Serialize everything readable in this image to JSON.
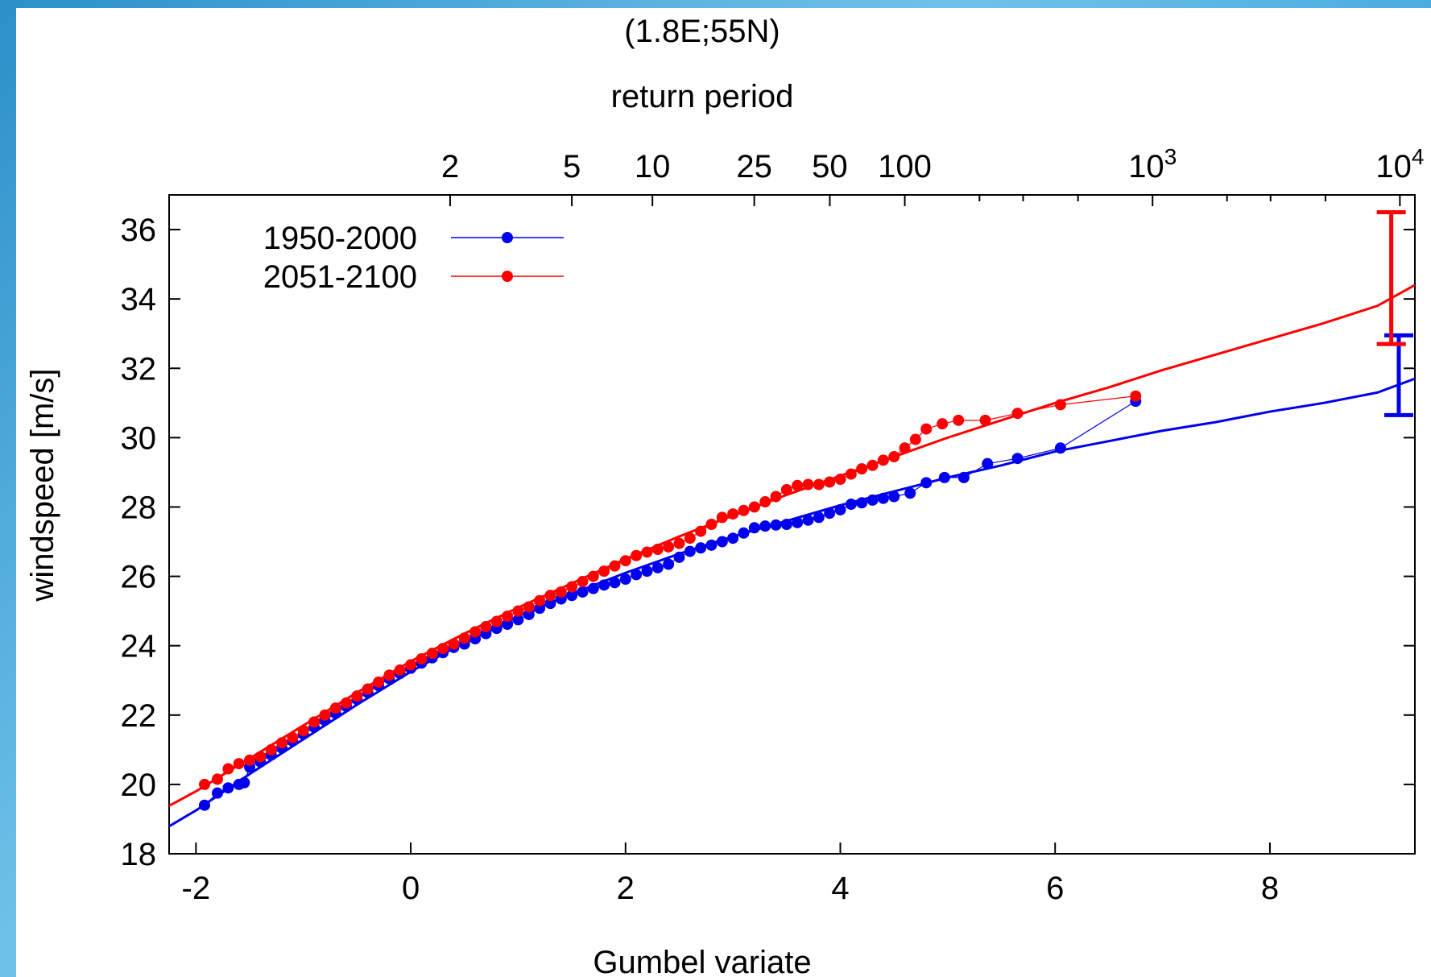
{
  "chart_data": {
    "type": "scatter",
    "title": "(1.8E;55N)",
    "xlabel": "Gumbel variate",
    "ylabel": "windspeed [m/s]",
    "x2label": "return period",
    "xlim": [
      -2.25,
      9.35
    ],
    "ylim": [
      18,
      37
    ],
    "x_ticks": [
      -2,
      0,
      2,
      4,
      6,
      8
    ],
    "y_ticks": [
      18,
      20,
      22,
      24,
      26,
      28,
      30,
      32,
      34,
      36
    ],
    "x2_ticks": [
      {
        "value": 2,
        "label": "2"
      },
      {
        "value": 5,
        "label": "5"
      },
      {
        "value": 10,
        "label": "10"
      },
      {
        "value": 25,
        "label": "25"
      },
      {
        "value": 50,
        "label": "50"
      },
      {
        "value": 100,
        "label": "100"
      },
      {
        "value": 1000,
        "label": "10",
        "exp": "3"
      },
      {
        "value": 10000,
        "label": "10",
        "exp": "4"
      }
    ],
    "x2_minor_ticks": [
      200,
      300,
      500,
      2000,
      3000,
      5000
    ],
    "legend_position": "top-left",
    "grid": false,
    "series": [
      {
        "name": "1950-2000",
        "color": "#0000ee",
        "points": [
          [
            -1.92,
            19.4
          ],
          [
            -1.8,
            19.75
          ],
          [
            -1.7,
            19.9
          ],
          [
            -1.6,
            20.0
          ],
          [
            -1.55,
            20.05
          ],
          [
            -1.5,
            20.5
          ],
          [
            -1.4,
            20.65
          ],
          [
            -1.3,
            20.85
          ],
          [
            -1.2,
            21.05
          ],
          [
            -1.1,
            21.25
          ],
          [
            -1.0,
            21.45
          ],
          [
            -0.9,
            21.65
          ],
          [
            -0.8,
            21.85
          ],
          [
            -0.7,
            22.05
          ],
          [
            -0.6,
            22.25
          ],
          [
            -0.5,
            22.45
          ],
          [
            -0.4,
            22.65
          ],
          [
            -0.3,
            22.85
          ],
          [
            -0.2,
            23.05
          ],
          [
            -0.1,
            23.2
          ],
          [
            0.0,
            23.35
          ],
          [
            0.1,
            23.5
          ],
          [
            0.2,
            23.65
          ],
          [
            0.3,
            23.8
          ],
          [
            0.4,
            23.95
          ],
          [
            0.5,
            24.05
          ],
          [
            0.6,
            24.2
          ],
          [
            0.7,
            24.35
          ],
          [
            0.8,
            24.5
          ],
          [
            0.9,
            24.62
          ],
          [
            1.0,
            24.75
          ],
          [
            1.1,
            24.9
          ],
          [
            1.2,
            25.08
          ],
          [
            1.3,
            25.22
          ],
          [
            1.4,
            25.35
          ],
          [
            1.5,
            25.45
          ],
          [
            1.6,
            25.55
          ],
          [
            1.7,
            25.65
          ],
          [
            1.8,
            25.75
          ],
          [
            1.9,
            25.82
          ],
          [
            2.0,
            25.92
          ],
          [
            2.1,
            26.05
          ],
          [
            2.2,
            26.15
          ],
          [
            2.3,
            26.25
          ],
          [
            2.4,
            26.35
          ],
          [
            2.5,
            26.55
          ],
          [
            2.6,
            26.72
          ],
          [
            2.7,
            26.82
          ],
          [
            2.8,
            26.9
          ],
          [
            2.9,
            27.0
          ],
          [
            3.0,
            27.1
          ],
          [
            3.1,
            27.25
          ],
          [
            3.2,
            27.4
          ],
          [
            3.3,
            27.45
          ],
          [
            3.4,
            27.48
          ],
          [
            3.5,
            27.5
          ],
          [
            3.6,
            27.55
          ],
          [
            3.7,
            27.62
          ],
          [
            3.8,
            27.7
          ],
          [
            3.9,
            27.82
          ],
          [
            4.0,
            27.92
          ],
          [
            4.1,
            28.08
          ],
          [
            4.2,
            28.12
          ],
          [
            4.3,
            28.2
          ],
          [
            4.4,
            28.25
          ],
          [
            4.5,
            28.3
          ],
          [
            4.65,
            28.4
          ],
          [
            4.8,
            28.7
          ],
          [
            4.97,
            28.85
          ],
          [
            5.15,
            28.85
          ],
          [
            5.37,
            29.25
          ],
          [
            5.65,
            29.4
          ],
          [
            6.05,
            29.7
          ],
          [
            6.75,
            31.05
          ]
        ],
        "fit": [
          [
            -2.3,
            18.7
          ],
          [
            -2.0,
            19.25
          ],
          [
            -1.5,
            20.3
          ],
          [
            -1.0,
            21.3
          ],
          [
            -0.5,
            22.3
          ],
          [
            0.0,
            23.25
          ],
          [
            0.5,
            24.1
          ],
          [
            1.0,
            24.85
          ],
          [
            1.5,
            25.5
          ],
          [
            2.0,
            26.1
          ],
          [
            2.5,
            26.65
          ],
          [
            3.0,
            27.15
          ],
          [
            3.5,
            27.6
          ],
          [
            4.0,
            28.05
          ],
          [
            4.5,
            28.45
          ],
          [
            5.0,
            28.85
          ],
          [
            5.5,
            29.2
          ],
          [
            6.0,
            29.6
          ],
          [
            6.5,
            29.9
          ],
          [
            7.0,
            30.2
          ],
          [
            7.5,
            30.45
          ],
          [
            8.0,
            30.75
          ],
          [
            8.5,
            31.0
          ],
          [
            9.0,
            31.3
          ],
          [
            9.35,
            31.7
          ]
        ],
        "errorbar": {
          "x": 9.2,
          "low": 30.65,
          "high": 32.95
        }
      },
      {
        "name": "2051-2100",
        "color": "#ff0000",
        "points": [
          [
            -1.92,
            20.0
          ],
          [
            -1.8,
            20.15
          ],
          [
            -1.7,
            20.45
          ],
          [
            -1.6,
            20.6
          ],
          [
            -1.5,
            20.7
          ],
          [
            -1.4,
            20.8
          ],
          [
            -1.3,
            21.0
          ],
          [
            -1.2,
            21.2
          ],
          [
            -1.1,
            21.35
          ],
          [
            -1.0,
            21.55
          ],
          [
            -0.9,
            21.8
          ],
          [
            -0.8,
            22.0
          ],
          [
            -0.7,
            22.2
          ],
          [
            -0.6,
            22.35
          ],
          [
            -0.5,
            22.55
          ],
          [
            -0.4,
            22.75
          ],
          [
            -0.3,
            22.95
          ],
          [
            -0.2,
            23.15
          ],
          [
            -0.1,
            23.3
          ],
          [
            0.0,
            23.45
          ],
          [
            0.1,
            23.62
          ],
          [
            0.2,
            23.78
          ],
          [
            0.3,
            23.92
          ],
          [
            0.4,
            24.05
          ],
          [
            0.5,
            24.22
          ],
          [
            0.6,
            24.4
          ],
          [
            0.7,
            24.55
          ],
          [
            0.8,
            24.7
          ],
          [
            0.9,
            24.85
          ],
          [
            1.0,
            25.0
          ],
          [
            1.1,
            25.12
          ],
          [
            1.2,
            25.3
          ],
          [
            1.3,
            25.45
          ],
          [
            1.4,
            25.55
          ],
          [
            1.5,
            25.7
          ],
          [
            1.6,
            25.85
          ],
          [
            1.7,
            26.0
          ],
          [
            1.8,
            26.15
          ],
          [
            1.9,
            26.3
          ],
          [
            2.0,
            26.45
          ],
          [
            2.1,
            26.6
          ],
          [
            2.2,
            26.7
          ],
          [
            2.3,
            26.78
          ],
          [
            2.4,
            26.85
          ],
          [
            2.5,
            26.95
          ],
          [
            2.6,
            27.1
          ],
          [
            2.7,
            27.3
          ],
          [
            2.8,
            27.5
          ],
          [
            2.9,
            27.7
          ],
          [
            3.0,
            27.8
          ],
          [
            3.1,
            27.9
          ],
          [
            3.2,
            28.0
          ],
          [
            3.3,
            28.15
          ],
          [
            3.4,
            28.3
          ],
          [
            3.5,
            28.5
          ],
          [
            3.6,
            28.62
          ],
          [
            3.7,
            28.65
          ],
          [
            3.8,
            28.65
          ],
          [
            3.9,
            28.72
          ],
          [
            4.0,
            28.8
          ],
          [
            4.1,
            28.95
          ],
          [
            4.2,
            29.1
          ],
          [
            4.3,
            29.2
          ],
          [
            4.4,
            29.35
          ],
          [
            4.5,
            29.45
          ],
          [
            4.6,
            29.7
          ],
          [
            4.7,
            29.95
          ],
          [
            4.8,
            30.25
          ],
          [
            4.95,
            30.4
          ],
          [
            5.1,
            30.5
          ],
          [
            5.35,
            30.5
          ],
          [
            5.65,
            30.7
          ],
          [
            6.05,
            30.95
          ],
          [
            6.75,
            31.2
          ]
        ],
        "fit": [
          [
            -2.3,
            19.3
          ],
          [
            -2.0,
            19.8
          ],
          [
            -1.5,
            20.75
          ],
          [
            -1.0,
            21.7
          ],
          [
            -0.5,
            22.65
          ],
          [
            0.0,
            23.55
          ],
          [
            0.5,
            24.35
          ],
          [
            1.0,
            25.1
          ],
          [
            1.5,
            25.8
          ],
          [
            2.0,
            26.5
          ],
          [
            2.5,
            27.15
          ],
          [
            3.0,
            27.75
          ],
          [
            3.5,
            28.35
          ],
          [
            4.0,
            28.9
          ],
          [
            4.5,
            29.45
          ],
          [
            5.0,
            30.0
          ],
          [
            5.5,
            30.5
          ],
          [
            6.0,
            31.0
          ],
          [
            6.5,
            31.45
          ],
          [
            7.0,
            31.95
          ],
          [
            7.5,
            32.4
          ],
          [
            8.0,
            32.85
          ],
          [
            8.5,
            33.3
          ],
          [
            9.0,
            33.8
          ],
          [
            9.35,
            34.4
          ]
        ],
        "errorbar": {
          "x": 9.13,
          "low": 32.7,
          "high": 36.5
        }
      }
    ]
  }
}
